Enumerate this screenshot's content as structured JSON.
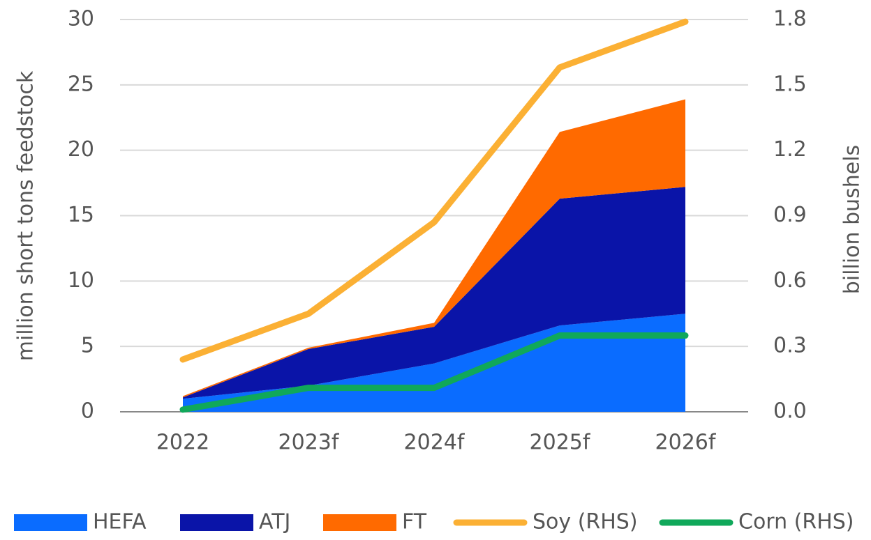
{
  "chart_data": {
    "type": "area",
    "categories": [
      "2022",
      "2023f",
      "2024f",
      "2025f",
      "2026f"
    ],
    "y_label": "million short tons feedstock",
    "y2_label": "billion bushels",
    "ylim": [
      0,
      30
    ],
    "yticks": [
      0,
      5,
      10,
      15,
      20,
      25,
      30
    ],
    "y2lim": [
      0,
      1.8
    ],
    "y2ticks": [
      {
        "value": 0,
        "label": "0.0"
      },
      0.3,
      0.6,
      0.9,
      1.2,
      1.5,
      1.8
    ],
    "grid": true,
    "legend": "bottom",
    "series": [
      {
        "name": "HEFA",
        "type": "area",
        "color": "#0a6cff",
        "values": [
          1.0,
          2.0,
          3.7,
          6.6,
          7.5
        ]
      },
      {
        "name": "ATJ",
        "type": "area",
        "color": "#0a14a8",
        "values": [
          0.1,
          2.8,
          2.8,
          9.7,
          9.7
        ]
      },
      {
        "name": "FT",
        "type": "area",
        "color": "#ff6a00",
        "values": [
          0.1,
          0.1,
          0.3,
          5.1,
          6.7
        ]
      },
      {
        "name": "Soy (RHS)",
        "type": "line",
        "axis": "y2",
        "color": "#fbb034",
        "values": [
          0.24,
          0.45,
          0.87,
          1.58,
          1.79
        ]
      },
      {
        "name": "Corn (RHS)",
        "type": "line",
        "axis": "y2",
        "color": "#10a85a",
        "values": [
          0.01,
          0.11,
          0.11,
          0.35,
          0.35
        ]
      }
    ]
  }
}
